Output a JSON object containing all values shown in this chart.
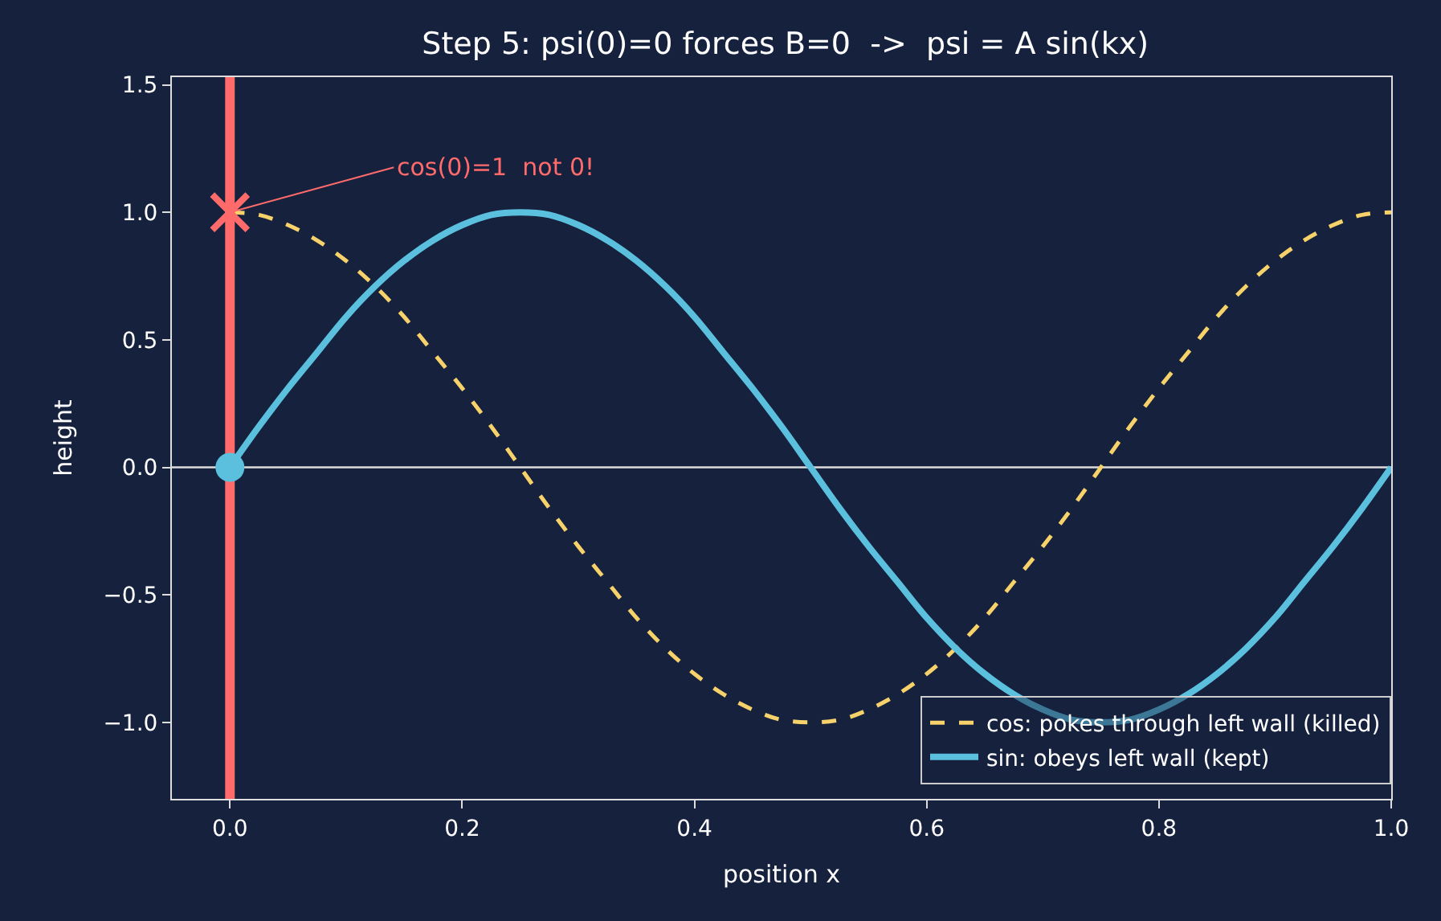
{
  "chart_data": {
    "type": "line",
    "title": "Step 5: psi(0)=0 forces B=0  ->  psi = A sin(kx)",
    "xlabel": "position x",
    "ylabel": "height",
    "x": [
      0,
      0.025,
      0.05,
      0.075,
      0.1,
      0.125,
      0.15,
      0.175,
      0.2,
      0.225,
      0.25,
      0.275,
      0.3,
      0.325,
      0.35,
      0.375,
      0.4,
      0.425,
      0.45,
      0.475,
      0.5,
      0.525,
      0.55,
      0.575,
      0.6,
      0.625,
      0.65,
      0.675,
      0.7,
      0.725,
      0.75,
      0.775,
      0.8,
      0.825,
      0.85,
      0.875,
      0.9,
      0.925,
      0.95,
      0.975,
      1
    ],
    "series": [
      {
        "name": "cos: pokes through left wall (killed)",
        "color": "#f7d26a",
        "line_style": "dashed",
        "values": [
          1,
          0.99,
          0.95,
          0.89,
          0.81,
          0.71,
          0.59,
          0.45,
          0.31,
          0.16,
          0,
          -0.16,
          -0.31,
          -0.45,
          -0.59,
          -0.71,
          -0.81,
          -0.89,
          -0.95,
          -0.99,
          -1,
          -0.99,
          -0.95,
          -0.89,
          -0.81,
          -0.71,
          -0.59,
          -0.45,
          -0.31,
          -0.16,
          0,
          0.16,
          0.31,
          0.45,
          0.59,
          0.71,
          0.81,
          0.89,
          0.95,
          0.99,
          1
        ]
      },
      {
        "name": "sin: obeys left wall (kept)",
        "color": "#5bc0de",
        "line_style": "solid",
        "values": [
          0,
          0.16,
          0.31,
          0.45,
          0.59,
          0.71,
          0.81,
          0.89,
          0.95,
          0.99,
          1,
          0.99,
          0.95,
          0.89,
          0.81,
          0.71,
          0.59,
          0.45,
          0.31,
          0.16,
          0,
          -0.16,
          -0.31,
          -0.45,
          -0.59,
          -0.71,
          -0.81,
          -0.89,
          -0.95,
          -0.99,
          -1,
          -0.99,
          -0.95,
          -0.89,
          -0.81,
          -0.71,
          -0.59,
          -0.45,
          -0.31,
          -0.16,
          0
        ]
      },
      {
        "type": "scatter",
        "marker": "cross",
        "color": "#ff6b6b",
        "x": [
          0
        ],
        "values": [
          1
        ]
      },
      {
        "type": "scatter",
        "marker": "circle",
        "color": "#5bc0de",
        "x": [
          0
        ],
        "values": [
          0
        ]
      }
    ],
    "ref_lines": [
      {
        "axis": "x",
        "value": 0,
        "color": "#ff6b6b"
      },
      {
        "axis": "y",
        "value": 0,
        "color": "#dddddd"
      }
    ],
    "annotations": [
      {
        "text": "cos(0)=1  not 0!",
        "x": 0,
        "y": 1
      }
    ],
    "xlim": [
      -0.05,
      1.0
    ],
    "ylim": [
      -1.3,
      1.53
    ],
    "xticks": [
      {
        "value": 0,
        "label": "0.0"
      },
      {
        "value": 0.2,
        "label": "0.2"
      },
      {
        "value": 0.4,
        "label": "0.4"
      },
      {
        "value": 0.6,
        "label": "0.6"
      },
      {
        "value": 0.8,
        "label": "0.8"
      },
      {
        "value": 1.0,
        "label": "1.0"
      }
    ],
    "yticks": [
      {
        "value": -1.0,
        "label": "−1.0"
      },
      {
        "value": -0.5,
        "label": "−0.5"
      },
      {
        "value": 0,
        "label": "0.0"
      },
      {
        "value": 0.5,
        "label": "0.5"
      },
      {
        "value": 1.0,
        "label": "1.0"
      },
      {
        "value": 1.5,
        "label": "1.5"
      }
    ],
    "legend": "bottom right",
    "grid": false
  }
}
